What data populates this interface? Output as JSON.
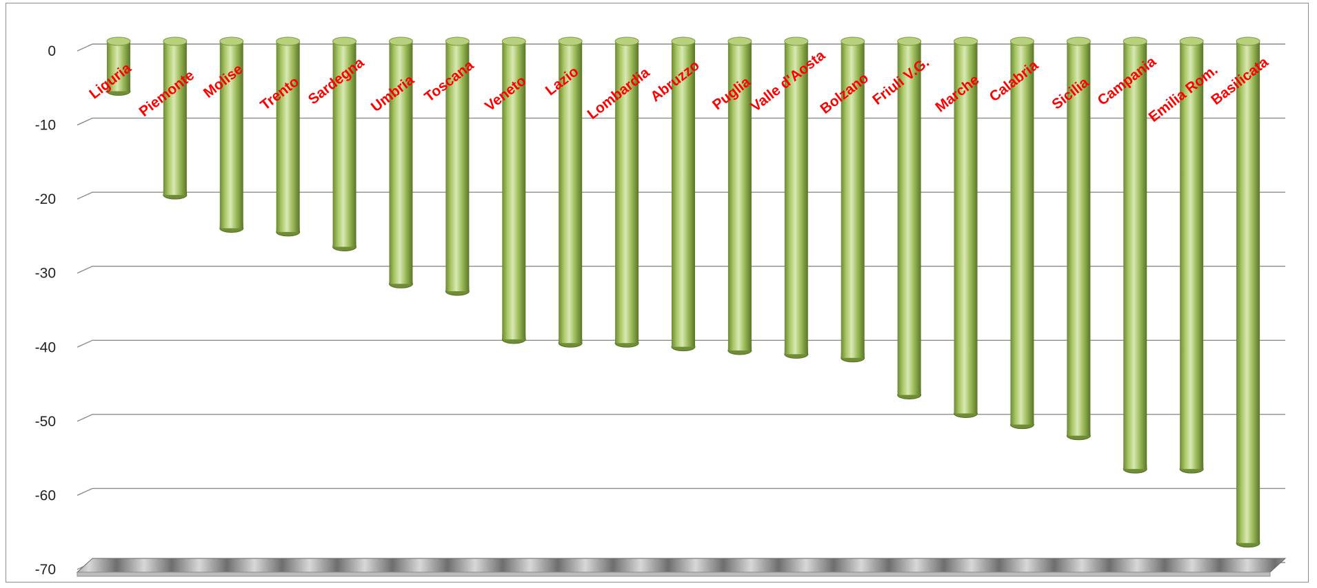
{
  "chart_data": {
    "type": "bar",
    "title": "",
    "xlabel": "",
    "ylabel": "",
    "categories": [
      "Liguria",
      "Piemonte",
      "Molise",
      "Trento",
      "Sardegna",
      "Umbria",
      "Toscana",
      "Veneto",
      "Lazio",
      "Lombardia",
      "Abruzzo",
      "Puglia",
      "Valle d'Aosta",
      "Bolzano",
      "Friuli V.G.",
      "Marche",
      "Calabria",
      "Sicilia",
      "Campania",
      "Emilia Rom.",
      "Basilicata"
    ],
    "values": [
      -6,
      -20,
      -24.5,
      -25,
      -27,
      -32,
      -33,
      -39.5,
      -40,
      -40,
      -40.5,
      -41,
      -41.5,
      -42,
      -47,
      -49.5,
      -51,
      -52.5,
      -57,
      -57,
      -67
    ],
    "ylim": [
      -70,
      0
    ],
    "yticks": [
      0,
      -10,
      -20,
      -30,
      -40,
      -50,
      -60,
      -70
    ],
    "grid": true,
    "legend": "none",
    "style": "3d-cylinder",
    "colors": {
      "bar": "#9bbb59",
      "bar_highlight": "#d7e6b0",
      "bar_shadow": "#5f7a2c",
      "category_label": "#ff0000",
      "gridline": "#8c8c8c"
    }
  }
}
